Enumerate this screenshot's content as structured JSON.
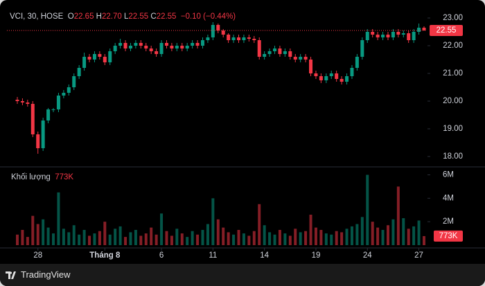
{
  "chart_data": {
    "type": "candlestick",
    "legend_symbol": "VCI, 30, HOSE",
    "legend_items": [
      {
        "key": "O",
        "value": "22.65"
      },
      {
        "key": "H",
        "value": "22.70"
      },
      {
        "key": "L",
        "value": "22.55"
      },
      {
        "key": "C",
        "value": "22.55"
      }
    ],
    "legend_change": "−0.10 (−0.44%)",
    "volume_title": "Khối lượng",
    "volume_last": {
      "value": 773000,
      "label": "773K"
    },
    "last_price": {
      "value": 22.55,
      "label": "22.55"
    },
    "footer": "TradingView",
    "up_color": "#089981",
    "down_color": "#f23645",
    "open": [
      20.05,
      20.0,
      19.95,
      19.9,
      18.8,
      18.3,
      19.3,
      19.7,
      19.7,
      20.2,
      20.3,
      20.5,
      20.9,
      21.2,
      21.6,
      21.5,
      21.7,
      21.6,
      21.4,
      21.8,
      22.0,
      22.1,
      21.9,
      22.0,
      22.1,
      22.0,
      21.9,
      21.8,
      21.7,
      22.1,
      22.0,
      21.9,
      22.0,
      21.9,
      22.0,
      22.1,
      22.0,
      22.2,
      22.3,
      22.75,
      22.55,
      22.4,
      22.2,
      22.3,
      22.2,
      22.3,
      22.25,
      22.2,
      21.6,
      21.7,
      21.8,
      21.9,
      21.7,
      21.8,
      21.6,
      21.5,
      21.6,
      21.5,
      21.0,
      20.9,
      20.75,
      20.9,
      21.0,
      20.8,
      20.7,
      20.9,
      21.2,
      21.6,
      22.2,
      22.5,
      22.4,
      22.3,
      22.4,
      22.3,
      22.5,
      22.4,
      22.45,
      22.2,
      22.5,
      22.65
    ],
    "high": [
      20.15,
      20.1,
      20.05,
      20.0,
      18.9,
      19.4,
      19.75,
      19.75,
      20.3,
      20.4,
      20.6,
      21.0,
      21.3,
      21.75,
      21.7,
      21.8,
      21.8,
      21.7,
      21.9,
      22.1,
      22.25,
      22.2,
      22.1,
      22.2,
      22.2,
      22.1,
      22.0,
      21.9,
      22.2,
      22.2,
      22.1,
      22.1,
      22.1,
      22.1,
      22.2,
      22.2,
      22.3,
      22.4,
      22.85,
      22.8,
      22.6,
      22.45,
      22.4,
      22.4,
      22.4,
      22.4,
      22.35,
      22.3,
      21.8,
      21.9,
      22.0,
      22.0,
      21.9,
      21.9,
      21.7,
      21.7,
      21.7,
      21.6,
      21.1,
      21.0,
      21.0,
      21.1,
      21.1,
      20.9,
      21.0,
      21.3,
      21.7,
      22.3,
      22.6,
      22.6,
      22.5,
      22.5,
      22.5,
      22.6,
      22.6,
      22.55,
      22.55,
      22.6,
      22.8,
      22.7
    ],
    "low": [
      19.9,
      19.85,
      19.8,
      18.7,
      18.1,
      18.2,
      19.2,
      19.6,
      19.6,
      20.1,
      20.2,
      20.4,
      20.8,
      21.1,
      21.4,
      21.4,
      21.5,
      21.3,
      21.3,
      21.7,
      21.9,
      21.8,
      21.8,
      21.9,
      21.9,
      21.8,
      21.7,
      21.6,
      21.6,
      21.9,
      21.8,
      21.8,
      21.8,
      21.8,
      21.9,
      21.9,
      21.9,
      22.1,
      22.2,
      22.45,
      22.3,
      22.1,
      22.1,
      22.1,
      22.1,
      22.15,
      22.1,
      21.5,
      21.5,
      21.6,
      21.7,
      21.6,
      21.6,
      21.5,
      21.4,
      21.4,
      21.4,
      20.9,
      20.8,
      20.65,
      20.65,
      20.8,
      20.7,
      20.6,
      20.6,
      20.8,
      21.1,
      21.5,
      22.1,
      22.3,
      22.2,
      22.2,
      22.2,
      22.2,
      22.3,
      22.3,
      22.1,
      22.1,
      22.4,
      22.55
    ],
    "close": [
      20.0,
      19.95,
      19.9,
      18.8,
      18.3,
      19.3,
      19.7,
      19.7,
      20.2,
      20.3,
      20.5,
      20.9,
      21.2,
      21.6,
      21.5,
      21.7,
      21.6,
      21.4,
      21.8,
      22.0,
      22.1,
      21.9,
      22.0,
      22.1,
      22.0,
      21.9,
      21.8,
      21.7,
      22.1,
      22.0,
      21.9,
      22.0,
      21.9,
      22.0,
      22.1,
      22.0,
      22.2,
      22.3,
      22.75,
      22.55,
      22.4,
      22.2,
      22.3,
      22.2,
      22.3,
      22.25,
      22.2,
      21.6,
      21.7,
      21.8,
      21.9,
      21.7,
      21.8,
      21.6,
      21.5,
      21.6,
      21.5,
      21.0,
      20.9,
      20.75,
      20.9,
      21.0,
      20.8,
      20.7,
      20.9,
      21.2,
      21.6,
      22.2,
      22.5,
      22.4,
      22.3,
      22.4,
      22.3,
      22.5,
      22.4,
      22.45,
      22.2,
      22.5,
      22.65,
      22.55
    ],
    "volume": [
      900000,
      1300000,
      700000,
      2500000,
      1800000,
      2200000,
      1500000,
      1000000,
      4500000,
      1400000,
      1100000,
      1700000,
      900000,
      1300000,
      800000,
      1000000,
      1200000,
      2000000,
      900000,
      1400000,
      1600000,
      700000,
      1100000,
      1300000,
      800000,
      1000000,
      1500000,
      900000,
      2700000,
      1200000,
      800000,
      1400000,
      1000000,
      700000,
      1200000,
      900000,
      1300000,
      1800000,
      4000000,
      2200000,
      1500000,
      1100000,
      900000,
      1300000,
      1000000,
      800000,
      1200000,
      3500000,
      1700000,
      1100000,
      900000,
      1300000,
      1000000,
      800000,
      1400000,
      1100000,
      1200000,
      2600000,
      1500000,
      1300000,
      1000000,
      900000,
      1200000,
      1100000,
      1400000,
      1600000,
      1800000,
      2400000,
      6000000,
      2000000,
      1500000,
      1300000,
      1700000,
      2200000,
      5000000,
      2300000,
      1400000,
      1600000,
      2100000,
      773000
    ],
    "ylim": [
      17.7,
      23.3
    ],
    "yticks": [
      {
        "value": 18,
        "label": "18.00"
      },
      {
        "value": 19,
        "label": "19.00"
      },
      {
        "value": 20,
        "label": "20.00"
      },
      {
        "value": 21,
        "label": "21.00"
      },
      {
        "value": 22,
        "label": "22.00"
      },
      {
        "value": 23,
        "label": "23.00"
      }
    ],
    "y2lim": [
      0,
      6500000
    ],
    "y2ticks": [
      {
        "value": 2000000,
        "label": "2M"
      },
      {
        "value": 4000000,
        "label": "4M"
      },
      {
        "value": 6000000,
        "label": "6M"
      }
    ],
    "xticks": [
      {
        "value": 4,
        "label": "28"
      },
      {
        "value": 17,
        "label": "Tháng 8"
      },
      {
        "value": 28,
        "label": "6"
      },
      {
        "value": 38,
        "label": "11"
      },
      {
        "value": 48,
        "label": "14"
      },
      {
        "value": 58,
        "label": "19"
      },
      {
        "value": 68,
        "label": "24"
      },
      {
        "value": 78,
        "label": "27"
      }
    ]
  }
}
